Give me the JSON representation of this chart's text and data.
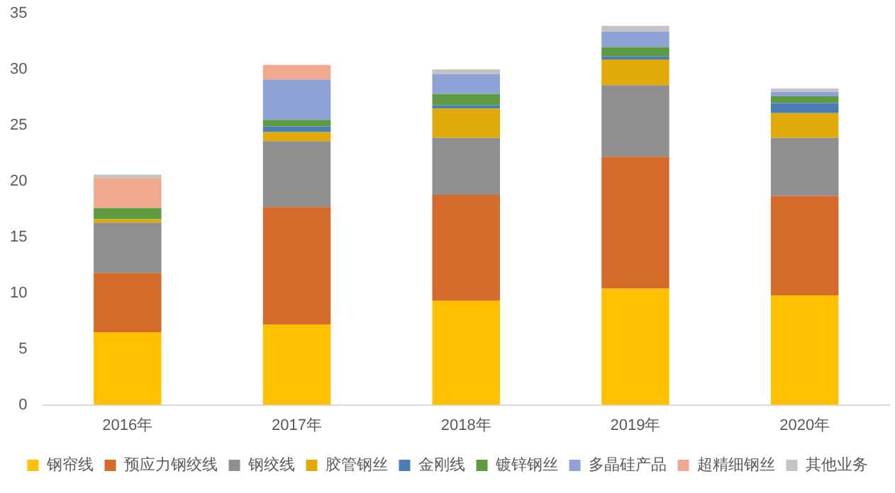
{
  "chart_data": {
    "type": "bar",
    "stacked": true,
    "categories": [
      "2016年",
      "2017年",
      "2018年",
      "2019年",
      "2020年"
    ],
    "series": [
      {
        "name": "钢帘线",
        "color": "#ffc000",
        "values": [
          6.5,
          7.2,
          9.3,
          10.4,
          9.8
        ]
      },
      {
        "name": "预应力钢绞线",
        "color": "#d46b2a",
        "values": [
          5.3,
          10.5,
          9.5,
          11.8,
          8.9
        ]
      },
      {
        "name": "钢绞线",
        "color": "#8f8f8f",
        "values": [
          4.5,
          5.9,
          5.1,
          6.4,
          5.2
        ]
      },
      {
        "name": "胶管钢丝",
        "color": "#e2aa08",
        "values": [
          0.3,
          0.8,
          2.6,
          2.3,
          2.2
        ]
      },
      {
        "name": "金刚线",
        "color": "#4a7fb5",
        "values": [
          0,
          0.5,
          0.3,
          0.3,
          0.9
        ]
      },
      {
        "name": "镀锌钢丝",
        "color": "#5e9b40",
        "values": [
          1.0,
          0.6,
          1.0,
          0.8,
          0.6
        ]
      },
      {
        "name": "多晶硅产品",
        "color": "#8fa2d6",
        "values": [
          0,
          3.6,
          1.8,
          1.4,
          0.4
        ]
      },
      {
        "name": "超精细钢丝",
        "color": "#f0a98f",
        "values": [
          2.7,
          1.3,
          0,
          0,
          0
        ]
      },
      {
        "name": "其他业务",
        "color": "#c4c4c4",
        "values": [
          0.3,
          0,
          0.4,
          0.5,
          0.3
        ]
      }
    ],
    "ylim": [
      0,
      35
    ],
    "yticks": [
      0,
      5,
      10,
      15,
      20,
      25,
      30,
      35
    ],
    "grid": false,
    "legend": "bottom"
  }
}
